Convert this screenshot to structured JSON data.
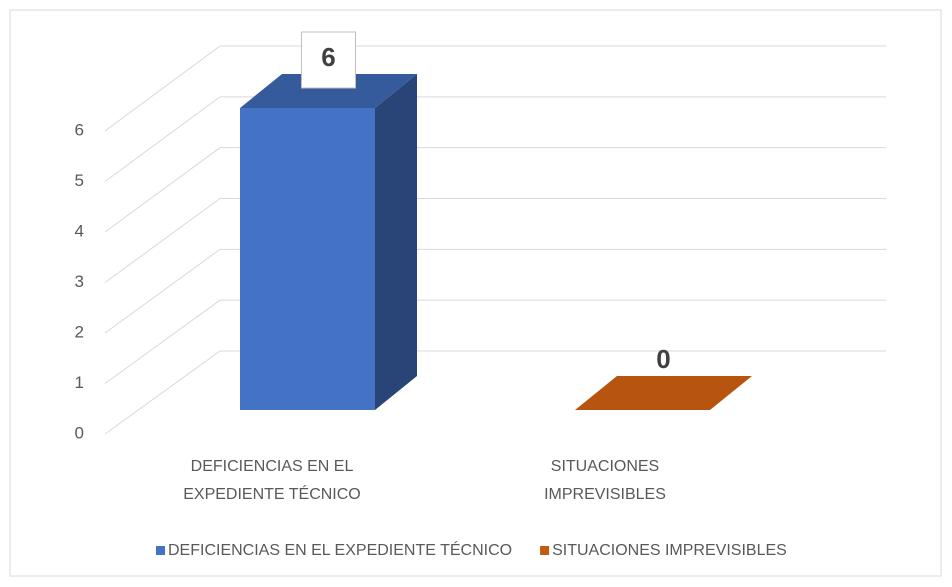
{
  "chart_data": {
    "type": "bar3d",
    "categories": [
      "DEFICIENCIAS EN EL EXPEDIENTE TÉCNICO",
      "SITUACIONES IMPREVISIBLES"
    ],
    "values": [
      6,
      0
    ],
    "colors": [
      "#4472c4",
      "#c55a11"
    ],
    "ylim": [
      0,
      6
    ],
    "yticks": [
      0,
      1,
      2,
      3,
      4,
      5,
      6
    ],
    "grid": true,
    "legend": "bottom"
  }
}
